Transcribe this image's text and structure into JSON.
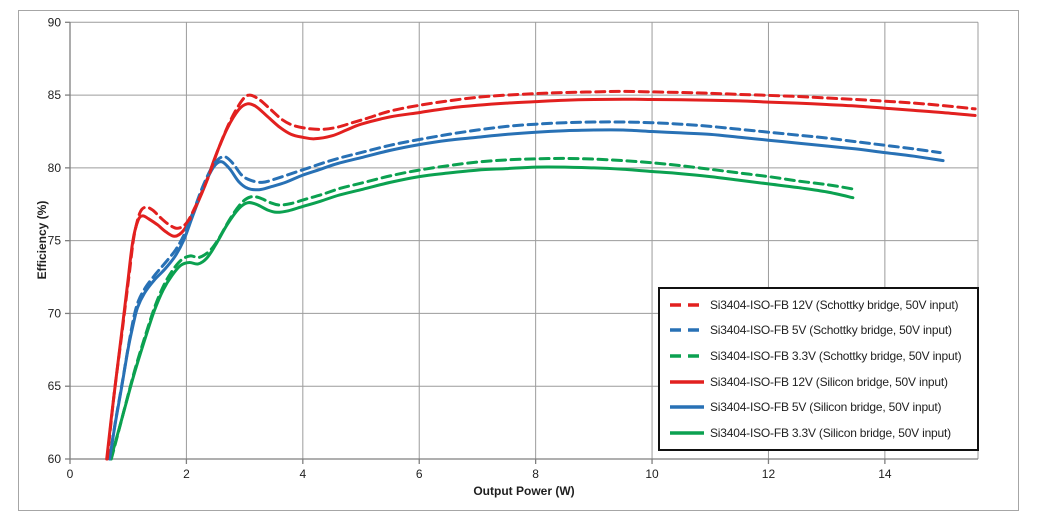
{
  "palette": {
    "red": "#e2201f",
    "blue": "#2871b5",
    "green": "#0ba150",
    "grid": "#9c9c9c",
    "axis": "#7f7f7f",
    "text": "#1f1f1f",
    "figure_border": "#a6a6a6",
    "legend_border": "#111111"
  },
  "chart_data": {
    "type": "line",
    "title": "",
    "xlabel": "Output Power (W)",
    "ylabel": "Efficiency (%)",
    "xlim": [
      0,
      15.6
    ],
    "ylim": [
      60,
      90
    ],
    "x_ticks": [
      0,
      2,
      4,
      6,
      8,
      10,
      12,
      14
    ],
    "y_ticks": [
      60,
      65,
      70,
      75,
      80,
      85,
      90
    ],
    "grid": true,
    "legend_position": "inside-right",
    "series": [
      {
        "label": "Si3404-ISO-FB 12V (Schottky bridge, 50V input)",
        "color": "#e2201f",
        "style": "dashed",
        "points": [
          [
            0.64,
            60
          ],
          [
            0.76,
            64.5
          ],
          [
            0.9,
            68.9
          ],
          [
            1.02,
            72.8
          ],
          [
            1.1,
            75.3
          ],
          [
            1.2,
            76.9
          ],
          [
            1.3,
            77.3
          ],
          [
            1.42,
            77.1
          ],
          [
            1.55,
            76.6
          ],
          [
            1.7,
            76.1
          ],
          [
            1.85,
            75.85
          ],
          [
            2.0,
            76.2
          ],
          [
            2.15,
            77.3
          ],
          [
            2.35,
            79.1
          ],
          [
            2.55,
            81.3
          ],
          [
            2.75,
            83.2
          ],
          [
            2.95,
            84.6
          ],
          [
            3.08,
            85.0
          ],
          [
            3.25,
            84.7
          ],
          [
            3.45,
            84.0
          ],
          [
            3.65,
            83.3
          ],
          [
            3.85,
            82.9
          ],
          [
            4.1,
            82.7
          ],
          [
            4.35,
            82.65
          ],
          [
            4.6,
            82.8
          ],
          [
            4.85,
            83.1
          ],
          [
            5.1,
            83.4
          ],
          [
            5.5,
            83.9
          ],
          [
            6.0,
            84.3
          ],
          [
            6.5,
            84.6
          ],
          [
            7.0,
            84.85
          ],
          [
            7.5,
            85.0
          ],
          [
            8.0,
            85.1
          ],
          [
            8.5,
            85.18
          ],
          [
            9.0,
            85.22
          ],
          [
            9.5,
            85.25
          ],
          [
            10.0,
            85.22
          ],
          [
            10.5,
            85.18
          ],
          [
            11.0,
            85.12
          ],
          [
            11.5,
            85.05
          ],
          [
            12.0,
            84.98
          ],
          [
            12.5,
            84.9
          ],
          [
            13.0,
            84.8
          ],
          [
            13.5,
            84.7
          ],
          [
            14.0,
            84.58
          ],
          [
            14.5,
            84.45
          ],
          [
            15.0,
            84.28
          ],
          [
            15.55,
            84.05
          ]
        ]
      },
      {
        "label": "Si3404-ISO-FB 5V (Schottky bridge, 50V input)",
        "color": "#2871b5",
        "style": "dashed",
        "points": [
          [
            0.68,
            60
          ],
          [
            0.79,
            62.8
          ],
          [
            0.9,
            65.3
          ],
          [
            1.01,
            67.9
          ],
          [
            1.1,
            69.8
          ],
          [
            1.18,
            70.9
          ],
          [
            1.3,
            71.8
          ],
          [
            1.47,
            72.7
          ],
          [
            1.64,
            73.5
          ],
          [
            1.82,
            74.4
          ],
          [
            1.97,
            75.5
          ],
          [
            2.12,
            77.0
          ],
          [
            2.27,
            78.6
          ],
          [
            2.42,
            79.9
          ],
          [
            2.55,
            80.6
          ],
          [
            2.67,
            80.75
          ],
          [
            2.8,
            80.3
          ],
          [
            2.95,
            79.5
          ],
          [
            3.1,
            79.15
          ],
          [
            3.3,
            79.0
          ],
          [
            3.5,
            79.2
          ],
          [
            3.8,
            79.6
          ],
          [
            4.1,
            80.0
          ],
          [
            4.4,
            80.4
          ],
          [
            4.7,
            80.75
          ],
          [
            5.0,
            81.05
          ],
          [
            5.5,
            81.55
          ],
          [
            6.0,
            81.95
          ],
          [
            6.5,
            82.3
          ],
          [
            7.0,
            82.6
          ],
          [
            7.5,
            82.85
          ],
          [
            8.0,
            83.0
          ],
          [
            8.5,
            83.1
          ],
          [
            9.0,
            83.15
          ],
          [
            9.5,
            83.15
          ],
          [
            10.0,
            83.1
          ],
          [
            10.5,
            83.0
          ],
          [
            11.0,
            82.85
          ],
          [
            11.5,
            82.65
          ],
          [
            12.0,
            82.45
          ],
          [
            12.5,
            82.25
          ],
          [
            13.0,
            82.05
          ],
          [
            13.5,
            81.8
          ],
          [
            14.0,
            81.55
          ],
          [
            14.5,
            81.3
          ],
          [
            14.95,
            81.05
          ]
        ]
      },
      {
        "label": "Si3404-ISO-FB 3.3V (Schottky bridge, 50V input)",
        "color": "#0ba150",
        "style": "dashed",
        "points": [
          [
            0.71,
            60
          ],
          [
            0.92,
            63.2
          ],
          [
            1.12,
            66.2
          ],
          [
            1.32,
            68.8
          ],
          [
            1.47,
            70.6
          ],
          [
            1.62,
            72.0
          ],
          [
            1.77,
            73.0
          ],
          [
            1.92,
            73.7
          ],
          [
            2.07,
            73.95
          ],
          [
            2.22,
            73.85
          ],
          [
            2.4,
            74.3
          ],
          [
            2.55,
            75.1
          ],
          [
            2.75,
            76.5
          ],
          [
            2.95,
            77.6
          ],
          [
            3.1,
            78.0
          ],
          [
            3.25,
            77.95
          ],
          [
            3.45,
            77.6
          ],
          [
            3.6,
            77.45
          ],
          [
            3.8,
            77.55
          ],
          [
            4.05,
            77.85
          ],
          [
            4.35,
            78.2
          ],
          [
            4.65,
            78.6
          ],
          [
            5.0,
            78.95
          ],
          [
            5.5,
            79.45
          ],
          [
            6.0,
            79.85
          ],
          [
            6.5,
            80.15
          ],
          [
            7.0,
            80.4
          ],
          [
            7.5,
            80.55
          ],
          [
            8.0,
            80.62
          ],
          [
            8.5,
            80.65
          ],
          [
            9.0,
            80.6
          ],
          [
            9.5,
            80.5
          ],
          [
            10.0,
            80.35
          ],
          [
            10.5,
            80.15
          ],
          [
            11.0,
            79.9
          ],
          [
            11.5,
            79.65
          ],
          [
            12.0,
            79.4
          ],
          [
            12.5,
            79.1
          ],
          [
            13.0,
            78.85
          ],
          [
            13.45,
            78.55
          ]
        ]
      },
      {
        "label": "Si3404-ISO-FB 12V (Silicon bridge, 50V input)",
        "color": "#e2201f",
        "style": "solid",
        "points": [
          [
            0.63,
            60
          ],
          [
            0.75,
            64.2
          ],
          [
            0.88,
            68.4
          ],
          [
            1.0,
            72.4
          ],
          [
            1.08,
            75.0
          ],
          [
            1.17,
            76.4
          ],
          [
            1.25,
            76.7
          ],
          [
            1.35,
            76.5
          ],
          [
            1.5,
            76.1
          ],
          [
            1.65,
            75.6
          ],
          [
            1.8,
            75.3
          ],
          [
            1.95,
            75.7
          ],
          [
            2.1,
            76.8
          ],
          [
            2.3,
            78.6
          ],
          [
            2.5,
            80.8
          ],
          [
            2.7,
            82.7
          ],
          [
            2.9,
            84.0
          ],
          [
            3.05,
            84.4
          ],
          [
            3.2,
            84.2
          ],
          [
            3.4,
            83.5
          ],
          [
            3.6,
            82.8
          ],
          [
            3.8,
            82.3
          ],
          [
            4.0,
            82.1
          ],
          [
            4.2,
            82.0
          ],
          [
            4.5,
            82.2
          ],
          [
            4.75,
            82.6
          ],
          [
            5.0,
            83.0
          ],
          [
            5.5,
            83.5
          ],
          [
            6.0,
            83.8
          ],
          [
            6.5,
            84.1
          ],
          [
            7.0,
            84.3
          ],
          [
            7.5,
            84.45
          ],
          [
            8.0,
            84.55
          ],
          [
            8.5,
            84.65
          ],
          [
            9.0,
            84.7
          ],
          [
            9.5,
            84.72
          ],
          [
            10.0,
            84.7
          ],
          [
            10.5,
            84.68
          ],
          [
            11.0,
            84.65
          ],
          [
            11.5,
            84.6
          ],
          [
            12.0,
            84.52
          ],
          [
            12.5,
            84.45
          ],
          [
            13.0,
            84.35
          ],
          [
            13.5,
            84.25
          ],
          [
            14.0,
            84.1
          ],
          [
            14.5,
            83.95
          ],
          [
            15.0,
            83.8
          ],
          [
            15.55,
            83.6
          ]
        ]
      },
      {
        "label": "Si3404-ISO-FB 5V (Silicon bridge, 50V input)",
        "color": "#2871b5",
        "style": "solid",
        "points": [
          [
            0.68,
            60
          ],
          [
            0.78,
            62.5
          ],
          [
            0.89,
            65.0
          ],
          [
            1.0,
            67.6
          ],
          [
            1.09,
            69.3
          ],
          [
            1.16,
            70.4
          ],
          [
            1.28,
            71.4
          ],
          [
            1.45,
            72.3
          ],
          [
            1.62,
            73.0
          ],
          [
            1.8,
            73.9
          ],
          [
            1.95,
            75.0
          ],
          [
            2.1,
            76.6
          ],
          [
            2.25,
            78.2
          ],
          [
            2.4,
            79.6
          ],
          [
            2.52,
            80.3
          ],
          [
            2.62,
            80.4
          ],
          [
            2.75,
            79.9
          ],
          [
            2.9,
            79.05
          ],
          [
            3.05,
            78.6
          ],
          [
            3.25,
            78.5
          ],
          [
            3.45,
            78.7
          ],
          [
            3.7,
            79.0
          ],
          [
            4.0,
            79.5
          ],
          [
            4.3,
            79.9
          ],
          [
            4.6,
            80.3
          ],
          [
            5.0,
            80.7
          ],
          [
            5.5,
            81.2
          ],
          [
            6.0,
            81.6
          ],
          [
            6.5,
            81.9
          ],
          [
            7.0,
            82.1
          ],
          [
            7.5,
            82.3
          ],
          [
            8.0,
            82.45
          ],
          [
            8.5,
            82.55
          ],
          [
            9.0,
            82.6
          ],
          [
            9.5,
            82.6
          ],
          [
            10.0,
            82.5
          ],
          [
            10.5,
            82.4
          ],
          [
            11.0,
            82.3
          ],
          [
            11.5,
            82.1
          ],
          [
            12.0,
            81.9
          ],
          [
            12.5,
            81.7
          ],
          [
            13.0,
            81.5
          ],
          [
            13.5,
            81.3
          ],
          [
            14.0,
            81.05
          ],
          [
            14.5,
            80.8
          ],
          [
            15.0,
            80.5
          ]
        ]
      },
      {
        "label": "Si3404-ISO-FB 3.3V (Silicon bridge, 50V input)",
        "color": "#0ba150",
        "style": "solid",
        "points": [
          [
            0.7,
            60
          ],
          [
            0.9,
            62.9
          ],
          [
            1.1,
            65.8
          ],
          [
            1.3,
            68.4
          ],
          [
            1.45,
            70.2
          ],
          [
            1.6,
            71.6
          ],
          [
            1.75,
            72.6
          ],
          [
            1.9,
            73.3
          ],
          [
            2.05,
            73.5
          ],
          [
            2.2,
            73.4
          ],
          [
            2.35,
            73.8
          ],
          [
            2.5,
            74.7
          ],
          [
            2.7,
            76.1
          ],
          [
            2.9,
            77.2
          ],
          [
            3.05,
            77.6
          ],
          [
            3.2,
            77.5
          ],
          [
            3.4,
            77.1
          ],
          [
            3.55,
            76.95
          ],
          [
            3.75,
            77.05
          ],
          [
            4.0,
            77.35
          ],
          [
            4.3,
            77.7
          ],
          [
            4.6,
            78.1
          ],
          [
            5.0,
            78.5
          ],
          [
            5.5,
            79.0
          ],
          [
            6.0,
            79.4
          ],
          [
            6.5,
            79.65
          ],
          [
            7.0,
            79.85
          ],
          [
            7.5,
            79.95
          ],
          [
            8.0,
            80.05
          ],
          [
            8.5,
            80.05
          ],
          [
            9.0,
            80.0
          ],
          [
            9.5,
            79.9
          ],
          [
            10.0,
            79.75
          ],
          [
            10.5,
            79.6
          ],
          [
            11.0,
            79.4
          ],
          [
            11.5,
            79.15
          ],
          [
            12.0,
            78.9
          ],
          [
            12.5,
            78.65
          ],
          [
            13.0,
            78.35
          ],
          [
            13.45,
            77.95
          ]
        ]
      }
    ]
  }
}
